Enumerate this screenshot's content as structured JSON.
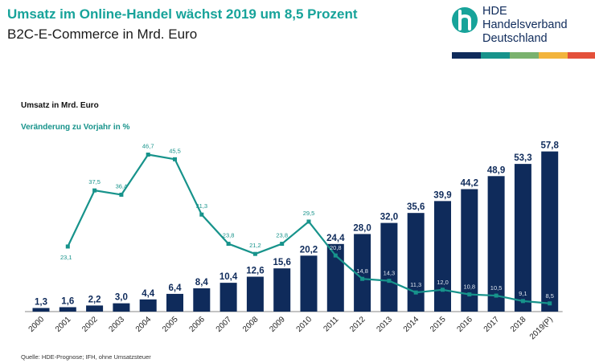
{
  "header": {
    "title": "Umsatz im Online-Handel wächst 2019 um 8,5 Prozent",
    "subtitle": "B2C-E-Commerce in Mrd. Euro"
  },
  "logo": {
    "line1": "HDE",
    "line2": "Handelsverband",
    "line3": "Deutschland",
    "mark_color": "#17a39a",
    "text_color": "#0f2b5b",
    "stripe_colors": [
      "#0f2b5b",
      "#17938b",
      "#7ab26e",
      "#f2b43c",
      "#e4503a"
    ]
  },
  "legend": {
    "revenue": "Umsatz in Mrd. Euro",
    "change": "Veränderung zu Vorjahr in %"
  },
  "source": "Quelle: HDE-Prognose;  IFH, ohne Umsatzsteuer",
  "chart_data": {
    "type": "bar",
    "categories": [
      "2000",
      "2001",
      "2002",
      "2003",
      "2004",
      "2005",
      "2006",
      "2007",
      "2008",
      "2009",
      "2010",
      "2011",
      "2012",
      "2013",
      "2014",
      "2015",
      "2016",
      "2017",
      "2018",
      "2019(P)"
    ],
    "series": [
      {
        "name": "Umsatz in Mrd. Euro",
        "type": "bar",
        "color": "#0f2b5b",
        "values": [
          1.3,
          1.6,
          2.2,
          3.0,
          4.4,
          6.4,
          8.4,
          10.4,
          12.6,
          15.6,
          20.2,
          24.4,
          28.0,
          32.0,
          35.6,
          39.9,
          44.2,
          48.9,
          53.3,
          57.8
        ],
        "labels": [
          "1,3",
          "1,6",
          "2,2",
          "3,0",
          "4,4",
          "6,4",
          "8,4",
          "10,4",
          "12,6",
          "15,6",
          "20,2",
          "24,4",
          "28,0",
          "32,0",
          "35,6",
          "39,9",
          "44,2",
          "48,9",
          "53,3",
          "57,8"
        ]
      },
      {
        "name": "Veränderung zu Vorjahr in %",
        "type": "line",
        "color": "#17938b",
        "values": [
          null,
          23.1,
          37.5,
          36.4,
          46.7,
          45.5,
          31.3,
          23.8,
          21.2,
          23.8,
          29.5,
          20.8,
          14.8,
          14.3,
          11.3,
          12.0,
          10.8,
          10.5,
          9.1,
          8.5
        ],
        "labels": [
          null,
          "23,1",
          "37,5",
          "36,4",
          "46,7",
          "45,5",
          "31,3",
          "23,8",
          "21,2",
          "23,8",
          "29,5",
          "20,8",
          "14,8",
          "14,3",
          "11,3",
          "12,0",
          "10,8",
          "10,5",
          "9,1",
          "8,5"
        ]
      }
    ],
    "grid": false,
    "legend_placement": "top-left"
  }
}
